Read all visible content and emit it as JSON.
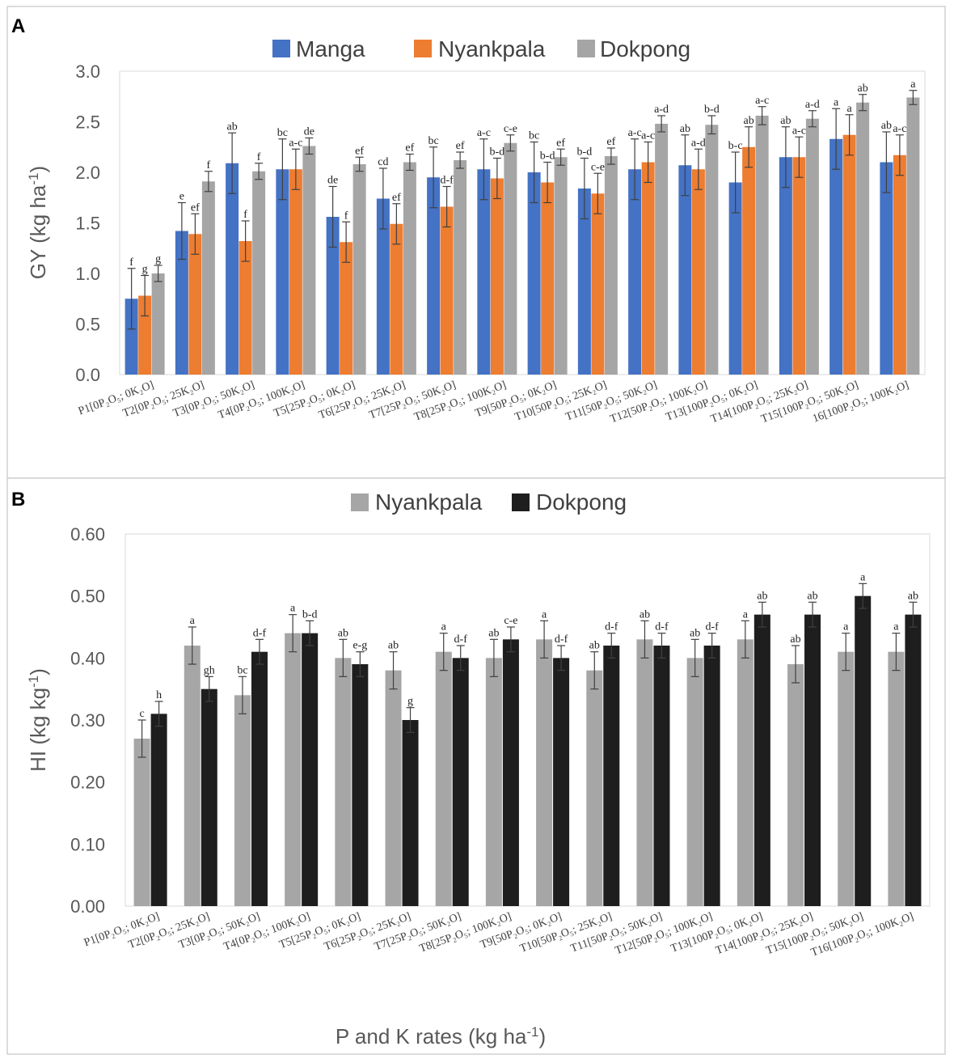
{
  "colors": {
    "manga": "#4472c4",
    "nyankpala": "#ed7d31",
    "dokpong": "#a5a5a5",
    "b_nyankpala": "#a6a6a6",
    "b_dokpong": "#1e1e1e"
  },
  "chart_data": [
    {
      "type": "bar",
      "panel_label": "A",
      "ylabel": "GY (kg ha",
      "ylabel_sup": "-1",
      "ylabel_close": ")",
      "ylim": [
        0,
        3.0
      ],
      "yticks": [
        "0.0",
        "0.5",
        "1.0",
        "1.5",
        "2.0",
        "2.5",
        "3.0"
      ],
      "grid": false,
      "legend_position": "top-center",
      "categories": [
        "P1[0P₂O₅; 0K₂O]",
        "T2[0P₂O₅; 25K₂O]",
        "T3[0P₂O₅; 50K₂O]",
        "T4[0P₂O₅; 100K₂O]",
        "T5[25P₂O₅; 0K₂O]",
        "T6[25P₂O₅; 25K₂O]",
        "T7[25P₂O₅; 50K₂O]",
        "T8[25P₂O₅; 100K₂O]",
        "T9[50P₂O₅; 0K₂O]",
        "T10[50P₂O₅; 25K₂O]",
        "T11[50P₂O₅; 50K₂O]",
        "T12[50P₂O₅; 100K₂O]",
        "T13[100P₂O₅; 0K₂O]",
        "T14[100P₂O₅; 25K₂O]",
        "T15[100P₂O₅; 50K₂O]",
        "16[100P₂O₅; 100K₂O]"
      ],
      "series": [
        {
          "name": "Manga",
          "color": "#4472c4",
          "values": [
            0.75,
            1.42,
            2.09,
            2.03,
            1.56,
            1.74,
            1.95,
            2.03,
            2.0,
            1.84,
            2.03,
            2.07,
            1.9,
            2.15,
            2.33,
            2.1
          ],
          "errors": [
            0.3,
            0.28,
            0.3,
            0.3,
            0.3,
            0.3,
            0.3,
            0.3,
            0.3,
            0.3,
            0.3,
            0.3,
            0.3,
            0.3,
            0.3,
            0.3
          ],
          "letters": [
            "f",
            "e",
            "ab",
            "bc",
            "de",
            "cd",
            "bc",
            "a-c",
            "bc",
            "b-d",
            "a-c",
            "ab",
            "b-c",
            "ab",
            "a",
            "ab"
          ]
        },
        {
          "name": "Nyankpala",
          "color": "#ed7d31",
          "values": [
            0.78,
            1.39,
            1.32,
            2.03,
            1.31,
            1.49,
            1.66,
            1.94,
            1.9,
            1.79,
            2.1,
            2.03,
            2.25,
            2.15,
            2.37,
            2.17
          ],
          "errors": [
            0.2,
            0.2,
            0.2,
            0.2,
            0.2,
            0.2,
            0.2,
            0.2,
            0.2,
            0.2,
            0.2,
            0.2,
            0.2,
            0.2,
            0.2,
            0.2
          ],
          "letters": [
            "g",
            "ef",
            "f",
            "a-c",
            "f",
            "ef",
            "d-f",
            "b-d",
            "b-d",
            "c-e",
            "a-c",
            "a-d",
            "ab",
            "a-c",
            "a",
            "a-c"
          ]
        },
        {
          "name": "Dokpong",
          "color": "#a5a5a5",
          "values": [
            1.0,
            1.91,
            2.01,
            2.26,
            2.08,
            2.1,
            2.12,
            2.29,
            2.15,
            2.16,
            2.48,
            2.47,
            2.56,
            2.53,
            2.69,
            2.74
          ],
          "errors": [
            0.08,
            0.1,
            0.08,
            0.08,
            0.07,
            0.08,
            0.08,
            0.08,
            0.08,
            0.08,
            0.08,
            0.09,
            0.09,
            0.08,
            0.08,
            0.07
          ],
          "letters": [
            "g",
            "f",
            "f",
            "de",
            "ef",
            "ef",
            "ef",
            "c-e",
            "ef",
            "ef",
            "a-d",
            "b-d",
            "a-c",
            "a-d",
            "ab",
            "a"
          ]
        }
      ]
    },
    {
      "type": "bar",
      "panel_label": "B",
      "ylabel": "HI (kg kg",
      "ylabel_sup": "-1",
      "ylabel_close": ")",
      "xlabel": "P and K rates (kg ha",
      "xlabel_sup": "-1",
      "xlabel_close": ")",
      "ylim": [
        0,
        0.6
      ],
      "yticks": [
        "0.00",
        "0.10",
        "0.20",
        "0.30",
        "0.40",
        "0.50",
        "0.60"
      ],
      "grid": false,
      "legend_position": "top-center",
      "categories": [
        "P1[0P₂O₅; 0K₂O]",
        "T2[0P₂O₅; 25K₂O]",
        "T3[0P₂O₅; 50K₂O]",
        "T4[0P₂O₅; 100K₂O]",
        "T5[25P₂O₅; 0K₂O]",
        "T6[25P₂O₅; 25K₂O]",
        "T7[25P₂O₅; 50K₂O]",
        "T8[25P₂O₅; 100K₂O]",
        "T9[50P₂O₅; 0K₂O]",
        "T10[50P₂O₅; 25K₂O]",
        "T11[50P₂O₅; 50K₂O]",
        "T12[50P₂O₅; 100K₂O]",
        "T13[100P₂O₅; 0K₂O]",
        "T14[100P₂O₅; 25K₂O]",
        "T15[100P₂O₅; 50K₂O]",
        "T16[100P₂O₅; 100K₂O]"
      ],
      "series": [
        {
          "name": "Nyankpala",
          "color": "#a6a6a6",
          "values": [
            0.27,
            0.42,
            0.34,
            0.44,
            0.4,
            0.38,
            0.41,
            0.4,
            0.43,
            0.38,
            0.43,
            0.4,
            0.43,
            0.39,
            0.41,
            0.41
          ],
          "errors": [
            0.03,
            0.03,
            0.03,
            0.03,
            0.03,
            0.03,
            0.03,
            0.03,
            0.03,
            0.03,
            0.03,
            0.03,
            0.03,
            0.03,
            0.03,
            0.03
          ],
          "letters": [
            "c",
            "a",
            "bc",
            "a",
            "ab",
            "ab",
            "a",
            "ab",
            "a",
            "ab",
            "ab",
            "ab",
            "a",
            "ab",
            "a",
            "a"
          ]
        },
        {
          "name": "Dokpong",
          "color": "#1e1e1e",
          "values": [
            0.31,
            0.35,
            0.41,
            0.44,
            0.39,
            0.3,
            0.4,
            0.43,
            0.4,
            0.42,
            0.42,
            0.42,
            0.47,
            0.47,
            0.5,
            0.47
          ],
          "errors": [
            0.02,
            0.02,
            0.02,
            0.02,
            0.02,
            0.02,
            0.02,
            0.02,
            0.02,
            0.02,
            0.02,
            0.02,
            0.02,
            0.02,
            0.02,
            0.02
          ],
          "letters": [
            "h",
            "gh",
            "d-f",
            "b-d",
            "e-g",
            "g",
            "d-f",
            "c-e",
            "d-f",
            "d-f",
            "d-f",
            "d-f",
            "ab",
            "ab",
            "a",
            "ab"
          ]
        }
      ]
    }
  ]
}
